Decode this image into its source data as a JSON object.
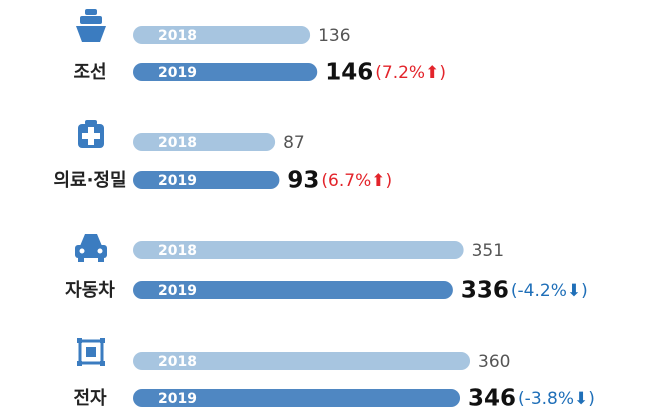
{
  "chart_data": {
    "type": "bar",
    "orientation": "horizontal",
    "categories": [
      "조선",
      "의료·정밀",
      "자동차",
      "전자"
    ],
    "series": [
      {
        "name": "2018",
        "color": "#a7c5e0",
        "values": [
          136,
          87,
          351,
          360
        ]
      },
      {
        "name": "2019",
        "color": "#4f87c2",
        "values": [
          146,
          93,
          336,
          346
        ]
      }
    ],
    "changes": [
      "(7.2%⬆)",
      "(6.7%⬆)",
      "(-4.2%⬇)",
      "(-3.8%⬇)"
    ],
    "change_colors": [
      "#e3242b",
      "#e3242b",
      "#1f6fb8",
      "#1f6fb8"
    ]
  }
}
